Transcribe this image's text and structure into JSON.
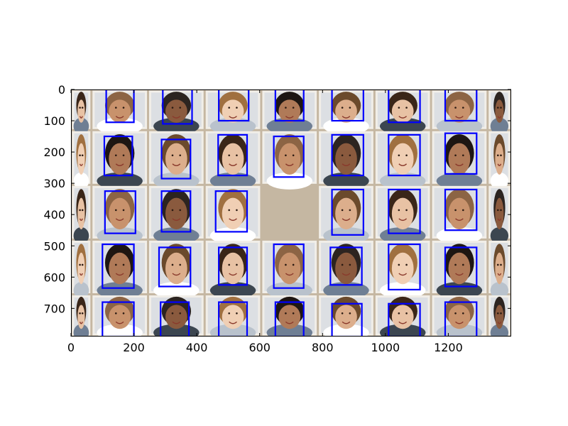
{
  "figure": {
    "image_width": 1400,
    "image_height": 790,
    "x_ticks": [
      0,
      200,
      400,
      600,
      800,
      1000,
      1200
    ],
    "y_ticks": [
      0,
      100,
      200,
      300,
      400,
      500,
      600,
      700
    ],
    "x_tick_labels": [
      "0",
      "200",
      "400",
      "600",
      "800",
      "1000",
      "1200"
    ],
    "y_tick_labels": [
      "0",
      "100",
      "200",
      "300",
      "400",
      "500",
      "600",
      "700"
    ],
    "grid": {
      "columns": [
        0,
        65,
        245,
        425,
        605,
        785,
        965,
        1145,
        1325,
        1400
      ],
      "rows": [
        0,
        130,
        305,
        480,
        655,
        790
      ],
      "empty_cell": {
        "row": 2,
        "col": 4
      }
    },
    "box_color": "#0000ff",
    "photo_border_color": "#f1eee8",
    "board_color": "#c5b7a2",
    "face_boxes": [
      {
        "x0": 112,
        "y0": 0,
        "x1": 200,
        "y1": 105
      },
      {
        "x0": 292,
        "y0": 0,
        "x1": 385,
        "y1": 110
      },
      {
        "x0": 470,
        "y0": 0,
        "x1": 565,
        "y1": 100
      },
      {
        "x0": 650,
        "y0": 0,
        "x1": 740,
        "y1": 100
      },
      {
        "x0": 830,
        "y0": 0,
        "x1": 930,
        "y1": 100
      },
      {
        "x0": 1010,
        "y0": 0,
        "x1": 1110,
        "y1": 105
      },
      {
        "x0": 1190,
        "y0": 0,
        "x1": 1290,
        "y1": 100
      },
      {
        "x0": 106,
        "y0": 150,
        "x1": 195,
        "y1": 275
      },
      {
        "x0": 288,
        "y0": 160,
        "x1": 380,
        "y1": 285
      },
      {
        "x0": 468,
        "y0": 145,
        "x1": 560,
        "y1": 275
      },
      {
        "x0": 645,
        "y0": 150,
        "x1": 740,
        "y1": 280
      },
      {
        "x0": 830,
        "y0": 145,
        "x1": 930,
        "y1": 275
      },
      {
        "x0": 1010,
        "y0": 145,
        "x1": 1110,
        "y1": 275
      },
      {
        "x0": 1190,
        "y0": 140,
        "x1": 1290,
        "y1": 270
      },
      {
        "x0": 108,
        "y0": 325,
        "x1": 205,
        "y1": 460
      },
      {
        "x0": 288,
        "y0": 325,
        "x1": 380,
        "y1": 455
      },
      {
        "x0": 460,
        "y0": 325,
        "x1": 560,
        "y1": 455
      },
      {
        "x0": 830,
        "y0": 320,
        "x1": 930,
        "y1": 465
      },
      {
        "x0": 1010,
        "y0": 320,
        "x1": 1110,
        "y1": 460
      },
      {
        "x0": 1190,
        "y0": 320,
        "x1": 1290,
        "y1": 450
      },
      {
        "x0": 100,
        "y0": 495,
        "x1": 200,
        "y1": 635
      },
      {
        "x0": 280,
        "y0": 505,
        "x1": 380,
        "y1": 630
      },
      {
        "x0": 470,
        "y0": 505,
        "x1": 560,
        "y1": 625
      },
      {
        "x0": 645,
        "y0": 495,
        "x1": 740,
        "y1": 635
      },
      {
        "x0": 825,
        "y0": 505,
        "x1": 925,
        "y1": 625
      },
      {
        "x0": 1010,
        "y0": 495,
        "x1": 1110,
        "y1": 640
      },
      {
        "x0": 1190,
        "y0": 505,
        "x1": 1290,
        "y1": 630
      },
      {
        "x0": 100,
        "y0": 680,
        "x1": 200,
        "y1": 790
      },
      {
        "x0": 285,
        "y0": 680,
        "x1": 375,
        "y1": 790
      },
      {
        "x0": 470,
        "y0": 680,
        "x1": 560,
        "y1": 790
      },
      {
        "x0": 650,
        "y0": 680,
        "x1": 740,
        "y1": 790
      },
      {
        "x0": 830,
        "y0": 685,
        "x1": 925,
        "y1": 790
      },
      {
        "x0": 1010,
        "y0": 685,
        "x1": 1110,
        "y1": 790
      },
      {
        "x0": 1190,
        "y0": 680,
        "x1": 1290,
        "y1": 790
      }
    ]
  }
}
